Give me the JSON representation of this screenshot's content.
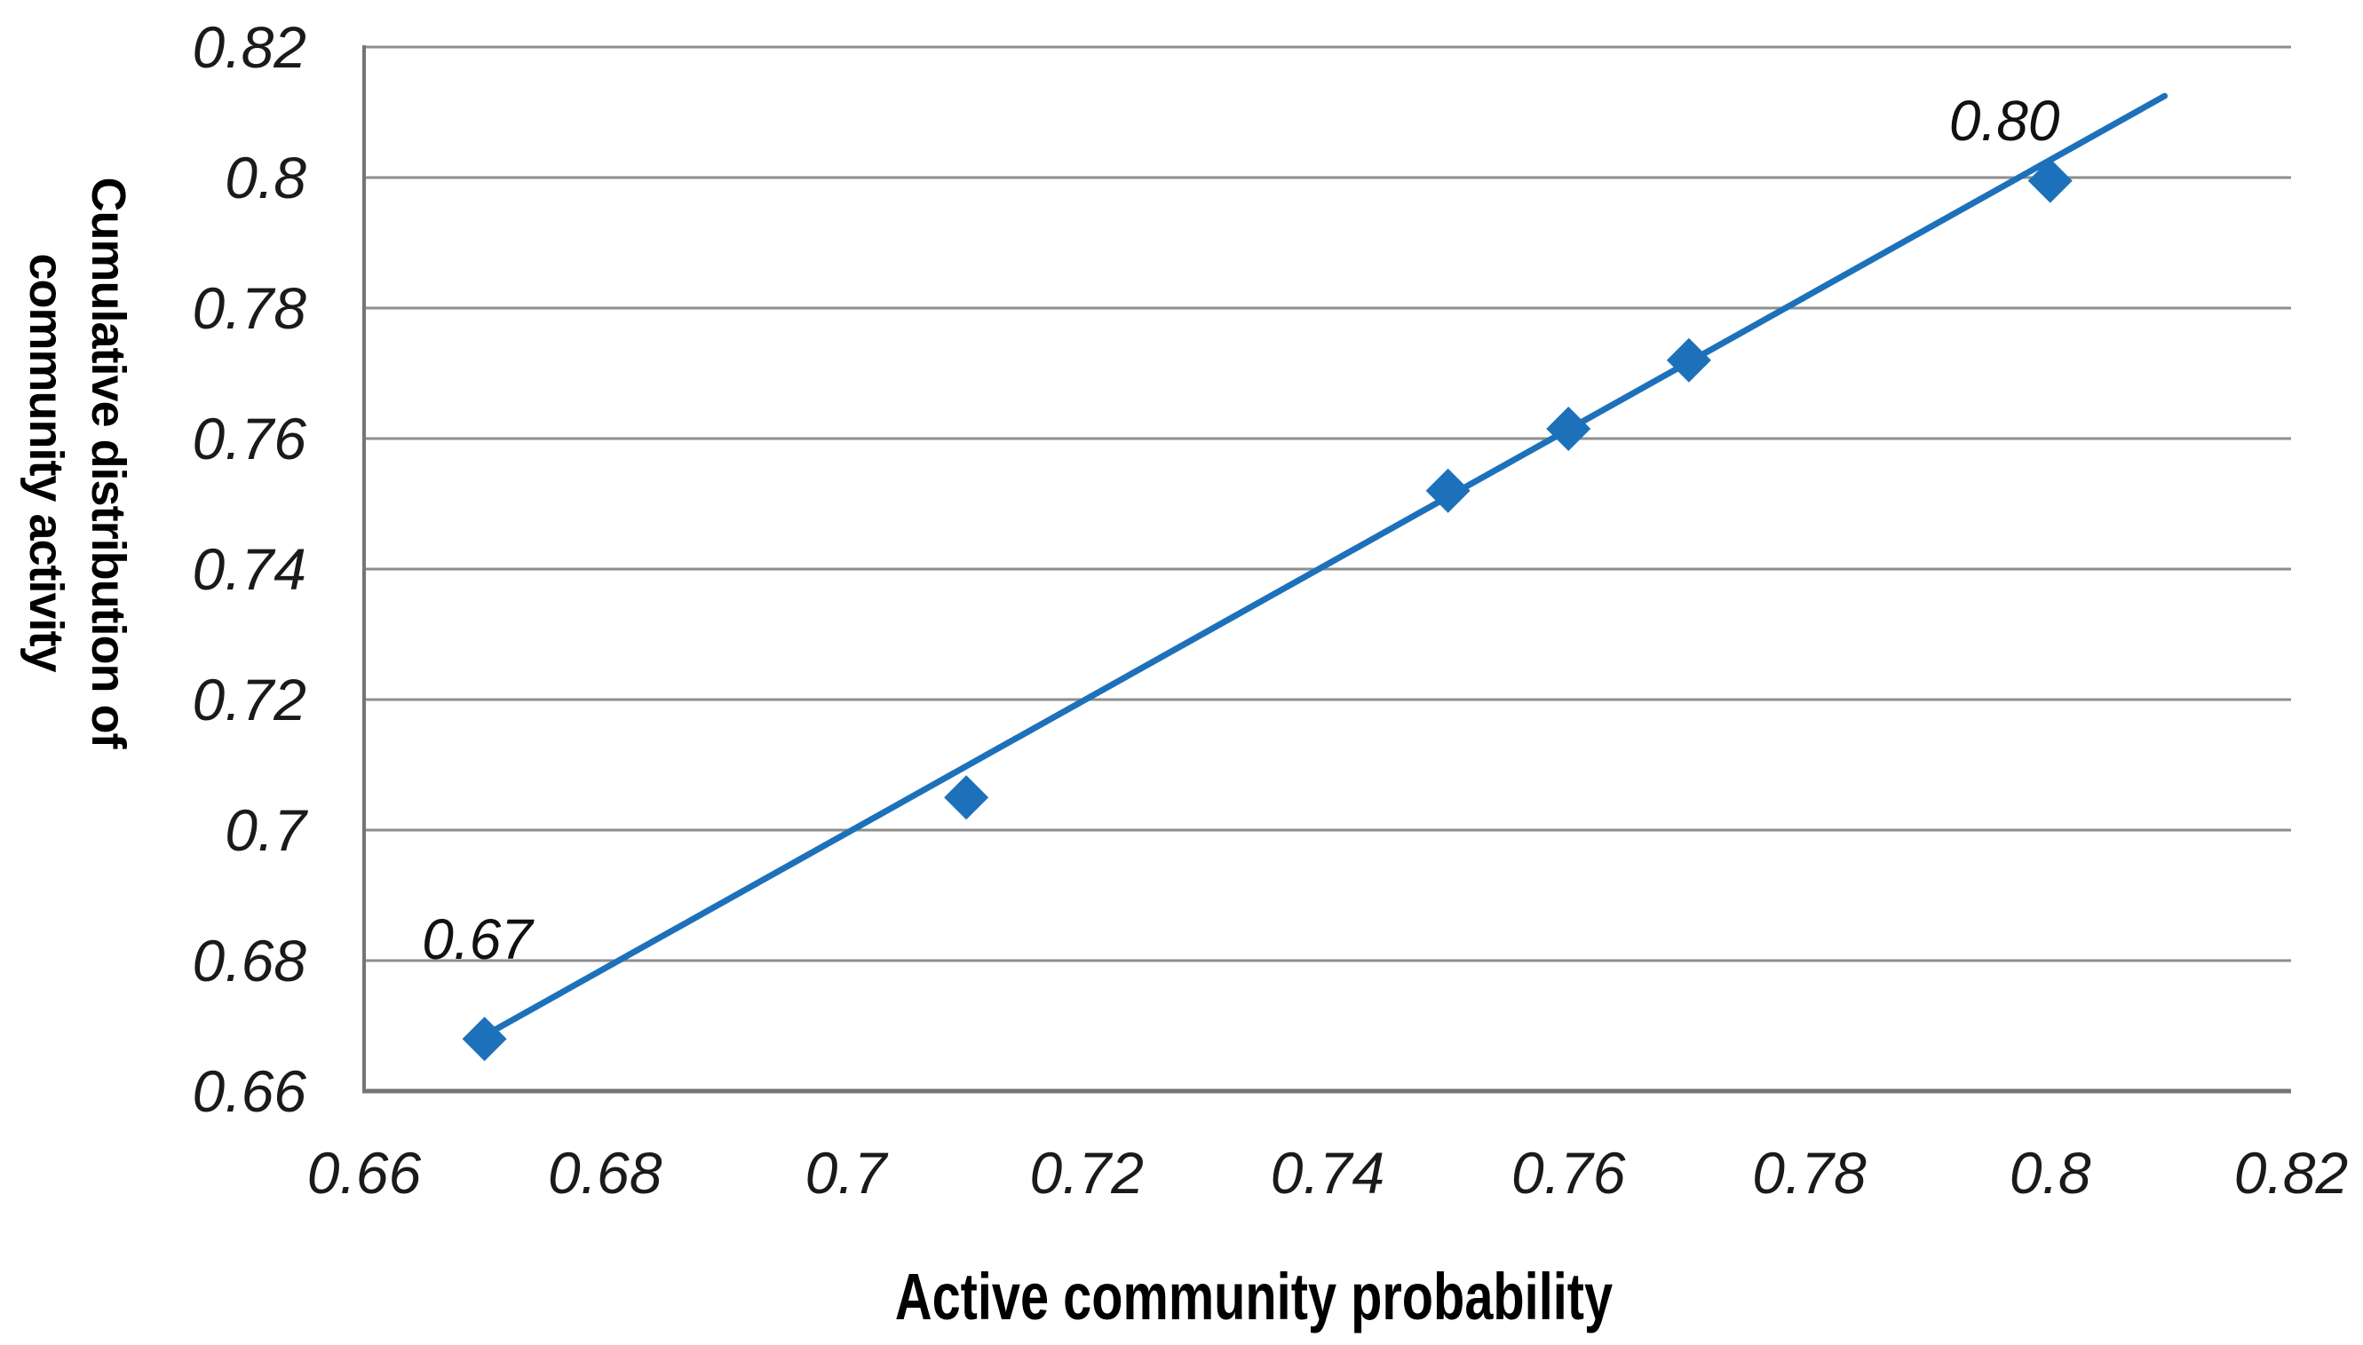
{
  "chart_data": {
    "type": "scatter",
    "title": "",
    "xlabel": "Active community probability",
    "ylabel": "Cumulative distribution of community activity",
    "ylabel_lines": [
      "Cumulative distribution of",
      "community activity"
    ],
    "xlim": [
      0.66,
      0.82
    ],
    "ylim": [
      0.66,
      0.82
    ],
    "x_tick_values": [
      0.66,
      0.68,
      0.7,
      0.72,
      0.74,
      0.76,
      0.78,
      0.8,
      0.82
    ],
    "x_tick_labels": [
      "0.66",
      "0.68",
      "0.7",
      "0.72",
      "0.74",
      "0.76",
      "0.78",
      "0.8",
      "0.82"
    ],
    "y_tick_values": [
      0.82,
      0.8,
      0.78,
      0.76,
      0.74,
      0.72,
      0.7,
      0.68,
      0.66
    ],
    "y_tick_labels": [
      "0.82",
      "0.8",
      "0.78",
      "0.76",
      "0.74",
      "0.72",
      "0.7",
      "0.68",
      "0.66"
    ],
    "grid": "horizontal",
    "legend_position": "none",
    "series": [
      {
        "name": "cumulative-distribution-points",
        "type": "scatter",
        "marker": "diamond",
        "color": "#1d71ba",
        "x": [
          0.67,
          0.71,
          0.75,
          0.76,
          0.77,
          0.8
        ],
        "y": [
          0.668,
          0.705,
          0.752,
          0.7615,
          0.772,
          0.7995
        ]
      },
      {
        "name": "trendline",
        "type": "line",
        "color": "#1d71ba",
        "x": [
          0.67,
          0.8095
        ],
        "y": [
          0.6685,
          0.8125
        ]
      }
    ],
    "annotations": [
      {
        "text": "0.67",
        "x": 0.6694,
        "y": 0.6833
      },
      {
        "text": "0.80",
        "x": 0.7962,
        "y": 0.8087
      }
    ],
    "colors": {
      "series": "#1d71ba",
      "gridline": "#8e8e8e",
      "axis": "#757575",
      "tick_text": "#1a1a1a",
      "title_text": "#000000"
    }
  }
}
